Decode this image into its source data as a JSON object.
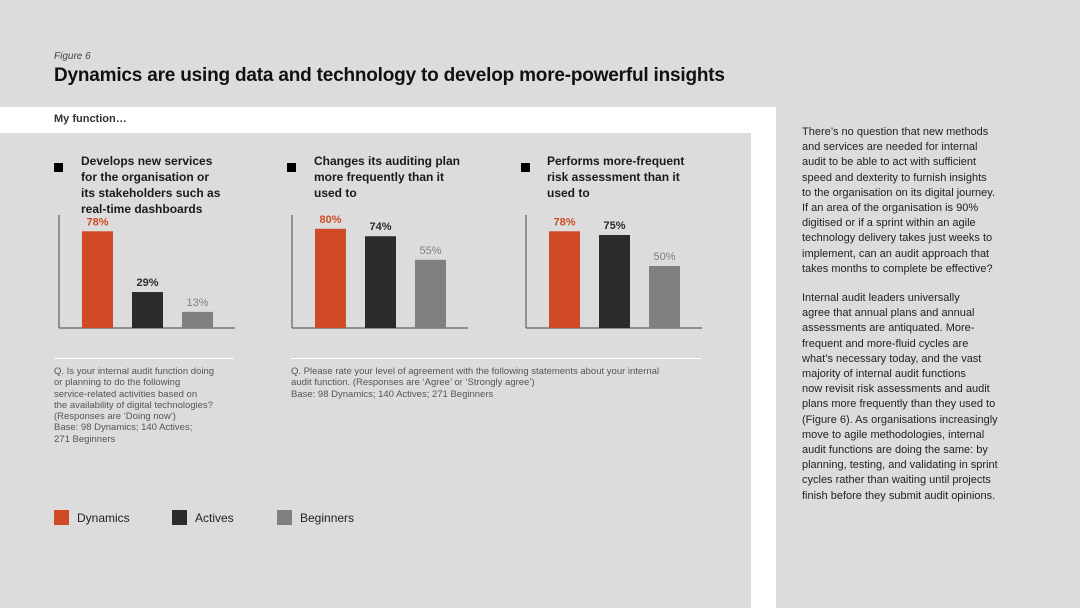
{
  "figure_label": "Figure 6",
  "title": "Dynamics are using data and technology to develop more-powerful insights",
  "subheading": "My function…",
  "colors": {
    "dynamics": "#d04a27",
    "actives": "#2b2b2b",
    "beginners": "#808080",
    "axis": "#444444"
  },
  "chart_data": [
    {
      "type": "bar",
      "title": "Develops new services for the organisation or its stakeholders such as real-time dashboards",
      "title_lines": [
        "Develops new services",
        "for the organisation or",
        "its stakeholders such as",
        "real-time dashboards"
      ],
      "categories": [
        "Dynamics",
        "Actives",
        "Beginners"
      ],
      "values": [
        78,
        29,
        13
      ],
      "data_labels": [
        "78%",
        "29%",
        "13%"
      ],
      "ylim": [
        0,
        100
      ],
      "xlabel": "",
      "ylabel": ""
    },
    {
      "type": "bar",
      "title": "Changes its auditing plan more frequently than it used to",
      "title_lines": [
        "Changes its auditing plan",
        "more frequently than it",
        "used to"
      ],
      "categories": [
        "Dynamics",
        "Actives",
        "Beginners"
      ],
      "values": [
        80,
        74,
        55
      ],
      "data_labels": [
        "80%",
        "74%",
        "55%"
      ],
      "ylim": [
        0,
        100
      ],
      "xlabel": "",
      "ylabel": ""
    },
    {
      "type": "bar",
      "title": "Performs more-frequent risk assessment than it used to",
      "title_lines": [
        "Performs more-frequent",
        "risk assessment than it",
        "used to"
      ],
      "categories": [
        "Dynamics",
        "Actives",
        "Beginners"
      ],
      "values": [
        78,
        75,
        50
      ],
      "data_labels": [
        "78%",
        "75%",
        "50%"
      ],
      "ylim": [
        0,
        100
      ],
      "xlabel": "",
      "ylabel": ""
    }
  ],
  "notes": {
    "left": [
      "Q. Is your internal audit function doing",
      "or planning to do the following",
      "service-related activities based on",
      "the availability of digital technologies?",
      "(Responses are ‘Doing now’)",
      "Base: 98 Dynamics; 140 Actives;",
      "271 Beginners"
    ],
    "right": [
      "Q. Please rate your level of agreement with the following statements about your internal",
      "audit function. (Responses are ‘Agree’ or ‘Strongly agree’)",
      "Base: 98 Dynamics; 140 Actives; 271 Beginners"
    ]
  },
  "legend": [
    {
      "label": "Dynamics",
      "color": "#d04a27"
    },
    {
      "label": "Actives",
      "color": "#2b2b2b"
    },
    {
      "label": "Beginners",
      "color": "#808080"
    }
  ],
  "body_paragraphs": [
    [
      "There’s no question that new methods",
      "and services are needed for internal",
      "audit to be able to act with sufficient",
      "speed and dexterity to furnish insights",
      "to the organisation on its digital journey.",
      "If an area of the organisation is 90%",
      "digitised or if a sprint within an agile",
      "technology delivery takes just weeks to",
      "implement, can an audit approach that",
      "takes months to complete be effective?"
    ],
    [
      "Internal audit leaders universally",
      "agree that annual plans and annual",
      "assessments are antiquated. More-",
      "frequent and more-fluid cycles are",
      "what’s necessary today, and the vast",
      "majority of internal audit functions",
      "now revisit risk assessments and audit",
      "plans more frequently than they used to",
      "(Figure 6). As organisations increasingly",
      "move to agile methodologies, internal",
      "audit functions are doing the same: by",
      "planning, testing, and validating in sprint",
      "cycles rather than waiting until projects",
      "finish before they submit audit opinions."
    ]
  ]
}
